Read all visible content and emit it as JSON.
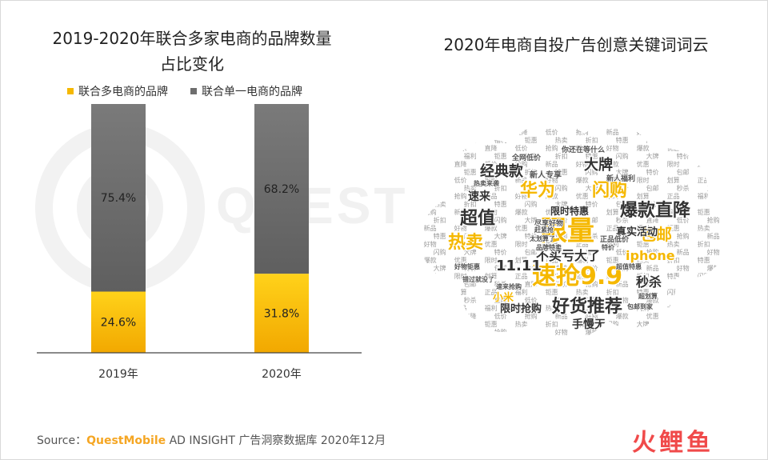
{
  "left_title_line1": "2019-2020年联合多家电商的品牌数量",
  "left_title_line2": "占比变化",
  "right_title": "2020年电商自投广告创意关键词词云",
  "watermark_text": "QUEST",
  "legend": [
    {
      "label": "联合多电商的品牌",
      "color": "#f5b800"
    },
    {
      "label": "联合单一电商的品牌",
      "color": "#6e6e6e"
    }
  ],
  "chart_data": {
    "type": "bar",
    "stacked": true,
    "percent": true,
    "categories": [
      "2019年",
      "2020年"
    ],
    "series": [
      {
        "name": "联合多电商的品牌",
        "values": [
          24.6,
          31.8
        ],
        "labels": [
          "24.6%",
          "31.8%"
        ],
        "color": "#f5b800"
      },
      {
        "name": "联合单一电商的品牌",
        "values": [
          75.4,
          68.2
        ],
        "labels": [
          "75.4%",
          "68.2%"
        ],
        "color": "#6e6e6e"
      }
    ],
    "ylim": [
      0,
      100
    ],
    "grid": false,
    "legend_position": "top"
  },
  "wordcloud": {
    "large_words": [
      {
        "text": "限量",
        "color": "#f5b800"
      },
      {
        "text": "速抢9.9",
        "color": "#f5b800"
      },
      {
        "text": "好货推荐",
        "color": "#333333"
      },
      {
        "text": "爆款直降",
        "color": "#333333"
      },
      {
        "text": "热卖",
        "color": "#f5b800"
      },
      {
        "text": "超值",
        "color": "#333333"
      },
      {
        "text": "华为",
        "color": "#f5b800"
      },
      {
        "text": "闪购",
        "color": "#f5b800"
      },
      {
        "text": "包邮",
        "color": "#f5b800"
      },
      {
        "text": "经典款",
        "color": "#333333"
      },
      {
        "text": "大牌",
        "color": "#333333"
      },
      {
        "text": "11.11",
        "color": "#333333"
      },
      {
        "text": "不买亏大了",
        "color": "#333333"
      },
      {
        "text": "iphone",
        "color": "#f5b800"
      },
      {
        "text": "秒杀",
        "color": "#333333"
      },
      {
        "text": "手慢无",
        "color": "#333333"
      },
      {
        "text": "小米",
        "color": "#f5b800"
      },
      {
        "text": "限时抢购",
        "color": "#333333"
      },
      {
        "text": "限时特惠",
        "color": "#333333"
      },
      {
        "text": "真实活动",
        "color": "#333333"
      },
      {
        "text": "速来",
        "color": "#333333"
      },
      {
        "text": "新人专享",
        "color": "#555555"
      },
      {
        "text": "你还在等什么",
        "color": "#555555"
      },
      {
        "text": "全网低价",
        "color": "#555555"
      },
      {
        "text": "新人福利",
        "color": "#555555"
      },
      {
        "text": "正品低价",
        "color": "#555555"
      },
      {
        "text": "尽享好物",
        "color": "#555555"
      },
      {
        "text": "好物钜惠",
        "color": "#555555"
      },
      {
        "text": "品牌特卖",
        "color": "#555555"
      },
      {
        "text": "超划算",
        "color": "#555555"
      },
      {
        "text": "错过就没了",
        "color": "#555555"
      },
      {
        "text": "速来抢购",
        "color": "#555555"
      },
      {
        "text": "包邮到家",
        "color": "#555555"
      },
      {
        "text": "热卖来袭",
        "color": "#555555"
      },
      {
        "text": "赶紧抢",
        "color": "#555555"
      },
      {
        "text": "太划算了",
        "color": "#555555"
      },
      {
        "text": "特价",
        "color": "#555555"
      },
      {
        "text": "超值特惠",
        "color": "#555555"
      }
    ],
    "fill_words": [
      "特价",
      "包邮",
      "秒杀",
      "直降",
      "低价",
      "抢购",
      "新品",
      "好物",
      "爆款",
      "优惠",
      "限时",
      "划算",
      "正品",
      "福利",
      "钜惠",
      "热卖",
      "折扣",
      "特惠",
      "闪购",
      "大牌"
    ]
  },
  "source": {
    "prefix": "Source：",
    "brand": "QuestMobile",
    "rest": " AD INSIGHT 广告洞察数据库 2020年12月"
  },
  "logo_text": "火鲤鱼"
}
